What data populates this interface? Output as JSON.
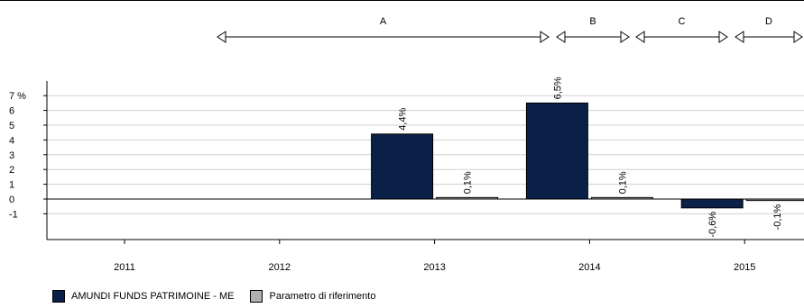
{
  "chart_data": {
    "type": "bar",
    "categories": [
      "2011",
      "2012",
      "2013",
      "2014",
      "2015"
    ],
    "ylabel": "%",
    "y_ticks": [
      "7 %",
      "6",
      "5",
      "4",
      "3",
      "2",
      "1",
      "0",
      "-1"
    ],
    "ylim": [
      -3,
      8
    ],
    "grid": true,
    "series": [
      {
        "name": "AMUNDI FUNDS PATRIMOINE - ME",
        "color": "#0b2048",
        "values": [
          null,
          null,
          4.4,
          6.5,
          -0.6
        ],
        "labels": [
          "",
          "",
          "4,4%",
          "6,5%",
          "-0,6%"
        ]
      },
      {
        "name": "Parametro di riferimento",
        "color": "#b0b0b0",
        "values": [
          null,
          null,
          0.1,
          0.1,
          -0.1
        ],
        "labels": [
          "",
          "",
          "0,1%",
          "0,1%",
          "-0,1%"
        ]
      }
    ],
    "periods": [
      "A",
      "B",
      "C",
      "D"
    ],
    "legend_position": "bottom-left"
  }
}
